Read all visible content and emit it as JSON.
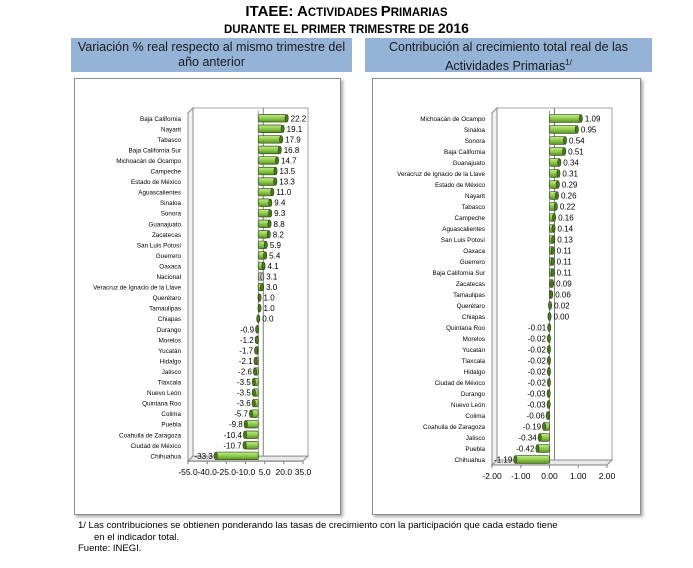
{
  "title": {
    "line1_bold": "ITAEE: A",
    "line1_sc": "CTIVIDADES ",
    "line1_bold2": "P",
    "line1_sc2": "RIMARIAS",
    "line2": "DURANTE EL PRIMER TRIMESTRE DE ",
    "year": "2016"
  },
  "headers": {
    "left": "Variación % real respecto al mismo trimestre del año anterior",
    "right": "Contribución al crecimiento total real de las Actividades Primarias",
    "right_sup": "1/"
  },
  "footnote": {
    "line1": "1/  Las contribuciones se obtienen ponderando las tasas de crecimiento con la participación que cada estado tiene",
    "line2": "en el indicador total.",
    "source": "Fuente: INEGI."
  },
  "colors": {
    "bar_fill": "#92D050",
    "bar_dark": "#4E7A1E",
    "header_bg": "#95B3D7",
    "highlight_fill": "#D9D9D9"
  },
  "chart_data": [
    {
      "type": "bar",
      "orientation": "horizontal",
      "title": "Variación % real respecto al mismo trimestre del año anterior",
      "xlim": [
        -55,
        35
      ],
      "xticks": [
        -55,
        -40,
        -25,
        -10,
        5,
        20,
        35
      ],
      "xtick_labels": [
        "-55.0",
        "-40.0",
        "-25.0",
        "-10.0",
        "5.0",
        "20.0",
        "35.0"
      ],
      "highlight": "Nacional",
      "categories": [
        "Baja California",
        "Nayarit",
        "Tabasco",
        "Baja California Sur",
        "Michoacán de Ocampo",
        "Campeche",
        "Estado de México",
        "Aguascalientes",
        "Sinaloa",
        "Sonora",
        "Guanajuato",
        "Zacatecas",
        "San Luis Potosí",
        "Guerrero",
        "Oaxaca",
        "Nacional",
        "Veracruz de Ignacio de la Llave",
        "Querétaro",
        "Tamaulipas",
        "Chiapas",
        "Durango",
        "Morelos",
        "Yucatán",
        "Hidalgo",
        "Jalisco",
        "Tlaxcala",
        "Nuevo León",
        "Quintana Roo",
        "Colima",
        "Puebla",
        "Coahuila de Zaragoza",
        "Ciudad de México",
        "Chihuahua"
      ],
      "values": [
        22.2,
        19.1,
        17.9,
        16.8,
        14.7,
        13.5,
        13.3,
        11.0,
        9.4,
        9.3,
        8.8,
        8.2,
        5.9,
        5.4,
        4.1,
        3.1,
        3.0,
        1.0,
        1.0,
        0.0,
        -0.9,
        -1.2,
        -1.7,
        -2.1,
        -2.6,
        -3.5,
        -3.5,
        -3.6,
        -5.7,
        -9.8,
        -10.4,
        -10.7,
        -33.3
      ],
      "labels": [
        "22.2",
        "19.1",
        "17.9",
        "16.8",
        "14.7",
        "13.5",
        "13.3",
        "11.0",
        "9.4",
        "9.3",
        "8.8",
        "8.2",
        "5.9",
        "5.4",
        "4.1",
        "3.1",
        "3.0",
        "1.0",
        "1.0",
        "0.0",
        "-0.9",
        "-1.2",
        "-1.7",
        "-2.1",
        "-2.6",
        "-3.5",
        "-3.5",
        "-3.6",
        "-5.7",
        "-9.8",
        "-10.4",
        "-10.7",
        "-33.3"
      ]
    },
    {
      "type": "bar",
      "orientation": "horizontal",
      "title": "Contribución al crecimiento total real de las Actividades Primarias",
      "xlim": [
        -2,
        2
      ],
      "xticks": [
        -2,
        -1,
        0,
        1,
        2
      ],
      "xtick_labels": [
        "-2.00",
        "-1.00",
        "0.00",
        "1.00",
        "2.00"
      ],
      "categories": [
        "Michoacán de Ocampo",
        "Sinaloa",
        "Sonora",
        "Baja California",
        "Guanajuato",
        "Veracruz de Ignacio de la Llave",
        "Estado de México",
        "Nayarit",
        "Tabasco",
        "Campeche",
        "Aguascalientes",
        "San Luis Potosí",
        "Oaxaca",
        "Guerrero",
        "Baja California Sur",
        "Zacatecas",
        "Tamaulipas",
        "Querétaro",
        "Chiapas",
        "Quintana Roo",
        "Morelos",
        "Yucatán",
        "Tlaxcala",
        "Hidalgo",
        "Ciudad de México",
        "Durango",
        "Nuevo León",
        "Colima",
        "Coahuila de Zaragoza",
        "Jalisco",
        "Puebla",
        "Chihuahua"
      ],
      "values": [
        1.09,
        0.95,
        0.54,
        0.51,
        0.34,
        0.31,
        0.29,
        0.26,
        0.22,
        0.16,
        0.14,
        0.13,
        0.11,
        0.11,
        0.11,
        0.09,
        0.06,
        0.02,
        0.0,
        -0.01,
        -0.02,
        -0.02,
        -0.02,
        -0.02,
        -0.02,
        -0.03,
        -0.03,
        -0.06,
        -0.19,
        -0.34,
        -0.42,
        -1.19
      ],
      "labels": [
        "1.09",
        "0.95",
        "0.54",
        "0.51",
        "0.34",
        "0.31",
        "0.29",
        "0.26",
        "0.22",
        "0.16",
        "0.14",
        "0.13",
        "0.11",
        "0.11",
        "0.11",
        "0.09",
        "0.06",
        "0.02",
        "0.00",
        "-0.01",
        "-0.02",
        "-0.02",
        "-0.02",
        "-0.02",
        "-0.02",
        "-0.03",
        "-0.03",
        "-0.06",
        "-0.19",
        "-0.34",
        "-0.42",
        "-1.19"
      ]
    }
  ]
}
